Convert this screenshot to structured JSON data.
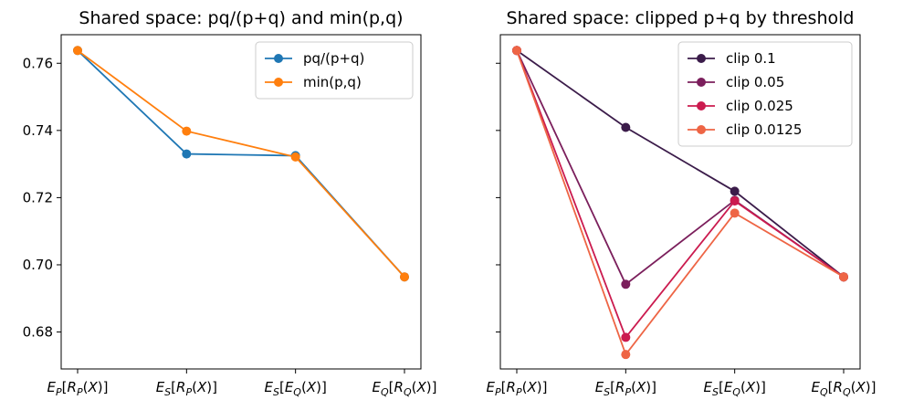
{
  "chart_data": [
    {
      "type": "line",
      "title": "Shared space: pq/(p+q) and min(p,q)",
      "xlabel": "",
      "ylabel": "",
      "categories": [
        "E_P[R_P(X)]",
        "E_S[R_P(X)]",
        "E_S[E_Q(X)]",
        "E_Q[R_Q(X)]"
      ],
      "ylim": [
        0.669,
        0.7685
      ],
      "yticks": [
        0.68,
        0.7,
        0.72,
        0.74,
        0.76
      ],
      "legend": "top-right",
      "grid": false,
      "series": [
        {
          "name": "pq/(p+q)",
          "color": "#1f77b4",
          "values": [
            0.7638,
            0.733,
            0.7325,
            0.6964
          ]
        },
        {
          "name": "min(p,q)",
          "color": "#ff7f0e",
          "values": [
            0.7638,
            0.7398,
            0.7321,
            0.6964
          ]
        }
      ]
    },
    {
      "type": "line",
      "title": "Shared space: clipped p+q by threshold",
      "xlabel": "",
      "ylabel": "",
      "categories": [
        "E_P[R_P(X)]",
        "E_S[R_P(X)]",
        "E_S[E_Q(X)]",
        "E_Q[R_Q(X)]"
      ],
      "ylim": [
        0.669,
        0.7685
      ],
      "yticks": [
        0.68,
        0.7,
        0.72,
        0.74,
        0.76
      ],
      "legend": "top-right",
      "grid": false,
      "series": [
        {
          "name": "clip 0.1",
          "color": "#3b1c4a",
          "values": [
            0.7638,
            0.7409,
            0.7219,
            0.6964
          ]
        },
        {
          "name": "clip 0.05",
          "color": "#7b1f5c",
          "values": [
            0.7638,
            0.6942,
            0.7192,
            0.6964
          ]
        },
        {
          "name": "clip 0.025",
          "color": "#cb1b4f",
          "values": [
            0.7638,
            0.6784,
            0.719,
            0.6964
          ]
        },
        {
          "name": "clip 0.0125",
          "color": "#ee6545",
          "values": [
            0.7638,
            0.6733,
            0.7154,
            0.6964
          ]
        }
      ]
    }
  ]
}
